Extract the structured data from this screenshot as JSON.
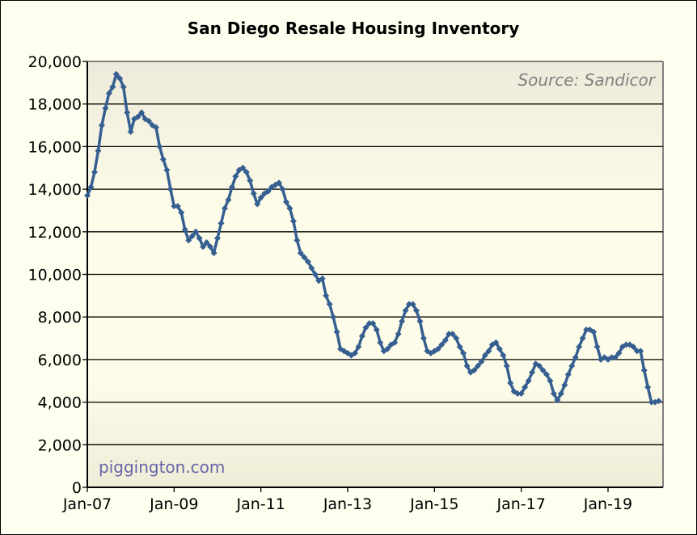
{
  "chart_data": {
    "type": "line",
    "title": "San Diego Resale Housing Inventory",
    "source_note": "Source: Sandicor",
    "watermark": "piggington.com",
    "xlabel": "",
    "ylabel": "",
    "ylim": [
      0,
      20000
    ],
    "yticks": [
      "0",
      "2,000",
      "4,000",
      "6,000",
      "8,000",
      "10,000",
      "12,000",
      "14,000",
      "16,000",
      "18,000",
      "20,000"
    ],
    "xtick_labels": [
      "Jan-07",
      "Jan-09",
      "Jan-11",
      "Jan-13",
      "Jan-15",
      "Jan-17",
      "Jan-19"
    ],
    "x_start": "Jan-07",
    "x_unit": "month",
    "grid": true,
    "series": [
      {
        "name": "Inventory",
        "color": "#365f91",
        "values": [
          13700,
          14100,
          14800,
          15800,
          17000,
          17800,
          18500,
          18800,
          19400,
          19200,
          18800,
          17600,
          16700,
          17300,
          17400,
          17600,
          17300,
          17200,
          17000,
          16900,
          16000,
          15400,
          14900,
          14000,
          13200,
          13200,
          12900,
          12100,
          11600,
          11800,
          12000,
          11700,
          11300,
          11500,
          11300,
          11000,
          11700,
          12400,
          13100,
          13500,
          14100,
          14600,
          14900,
          15000,
          14800,
          14400,
          13800,
          13300,
          13600,
          13800,
          13900,
          14100,
          14200,
          14300,
          14000,
          13400,
          13100,
          12500,
          11600,
          11000,
          10800,
          10600,
          10300,
          10000,
          9700,
          9800,
          9000,
          8600,
          8000,
          7300,
          6500,
          6400,
          6300,
          6200,
          6300,
          6600,
          7100,
          7500,
          7700,
          7700,
          7400,
          6800,
          6400,
          6500,
          6700,
          6800,
          7200,
          7800,
          8300,
          8600,
          8600,
          8300,
          7800,
          7000,
          6400,
          6300,
          6400,
          6500,
          6700,
          6900,
          7200,
          7200,
          7000,
          6600,
          6300,
          5700,
          5400,
          5500,
          5700,
          5900,
          6200,
          6400,
          6700,
          6800,
          6500,
          6200,
          5700,
          4900,
          4500,
          4400,
          4400,
          4700,
          5000,
          5400,
          5800,
          5700,
          5500,
          5300,
          5000,
          4400,
          4100,
          4400,
          4800,
          5300,
          5700,
          6100,
          6600,
          7000,
          7400,
          7400,
          7300,
          6600,
          6000,
          6100,
          6000,
          6100,
          6100,
          6300,
          6600,
          6700,
          6700,
          6600,
          6400,
          6400,
          5500,
          4700,
          4000,
          4000,
          4050
        ]
      }
    ]
  }
}
